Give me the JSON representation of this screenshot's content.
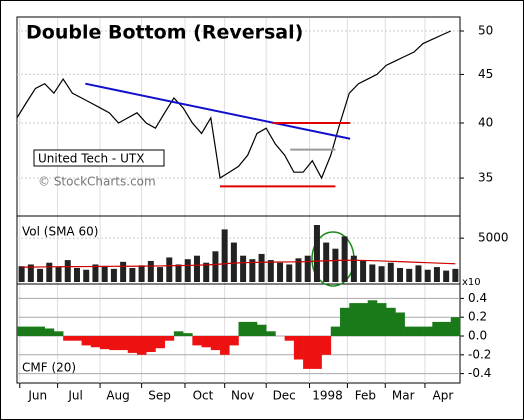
{
  "chart_data": [
    {
      "type": "line",
      "title": "Double Bottom (Reversal)",
      "label": "United Tech - UTX",
      "source": "© StockCharts.com",
      "log": true,
      "color": "#000000",
      "x": [
        0,
        1,
        2,
        3,
        4,
        5,
        6,
        7,
        8,
        9,
        10,
        11,
        12,
        13,
        14,
        15,
        16,
        17,
        18,
        19,
        20,
        21,
        22,
        23,
        24,
        25,
        26,
        27,
        28,
        29,
        30,
        31,
        32,
        33,
        34,
        35,
        36,
        37,
        38,
        39,
        40,
        41,
        42,
        43,
        44,
        45,
        46,
        47
      ],
      "values": [
        40.5,
        42,
        43.5,
        44,
        43,
        44.5,
        43,
        42.5,
        42,
        41.5,
        41,
        40,
        40.5,
        41,
        40,
        39.5,
        41,
        42.5,
        41.5,
        40,
        39,
        40.5,
        35,
        35.5,
        36,
        37,
        39,
        39.5,
        38,
        37,
        35.5,
        35.5,
        36.5,
        35,
        37,
        40,
        43,
        44,
        44.5,
        45,
        46,
        46.5,
        47,
        47.5,
        48.5,
        49,
        49.5,
        50
      ],
      "xlim": [
        0,
        48
      ],
      "ylim": [
        32,
        51.6
      ],
      "yticks": [
        50,
        45,
        40,
        35
      ],
      "lines": [
        {
          "x": [
            7.4,
            36.1
          ],
          "y": [
            44,
            38.5
          ],
          "color": "#1010cc"
        },
        {
          "x": [
            27.7,
            36.1
          ],
          "y": [
            40,
            40
          ],
          "color": "#e00000"
        },
        {
          "x": [
            22,
            34.5
          ],
          "y": [
            34.3,
            34.3
          ],
          "color": "#e00000"
        },
        {
          "x": [
            29.6,
            34.5
          ],
          "y": [
            37.5,
            37.5
          ],
          "color": "#999999"
        }
      ]
    },
    {
      "type": "bar",
      "title": "Vol (SMA 60)",
      "unit_label": "x10",
      "color": "#222222",
      "x": [
        0,
        1,
        2,
        3,
        4,
        5,
        6,
        7,
        8,
        9,
        10,
        11,
        12,
        13,
        14,
        15,
        16,
        17,
        18,
        19,
        20,
        21,
        22,
        23,
        24,
        25,
        26,
        27,
        28,
        29,
        30,
        31,
        32,
        33,
        34,
        35,
        36,
        37,
        38,
        39,
        40,
        41,
        42,
        43,
        44,
        45,
        46,
        47
      ],
      "values": [
        1800,
        2000,
        1500,
        2200,
        1700,
        2500,
        1600,
        1400,
        2000,
        1800,
        1500,
        2300,
        1600,
        1900,
        2400,
        1700,
        2800,
        2000,
        2600,
        3000,
        2200,
        3500,
        6000,
        4500,
        3000,
        2600,
        3200,
        2500,
        2200,
        2000,
        2700,
        3000,
        6500,
        4500,
        3800,
        5200,
        3000,
        2500,
        2000,
        1800,
        2200,
        1600,
        1500,
        1900,
        1400,
        1700,
        1300,
        1500
      ],
      "sma": {
        "color": "#cc0000",
        "values": [
          1700,
          1700,
          1720,
          1730,
          1740,
          1750,
          1750,
          1760,
          1770,
          1780,
          1790,
          1800,
          1800,
          1810,
          1820,
          1830,
          1850,
          1870,
          1890,
          1920,
          1950,
          2000,
          2080,
          2150,
          2200,
          2230,
          2250,
          2270,
          2280,
          2290,
          2300,
          2320,
          2380,
          2420,
          2450,
          2480,
          2480,
          2460,
          2430,
          2400,
          2360,
          2320,
          2280,
          2240,
          2200,
          2160,
          2120,
          2080
        ]
      },
      "xlim": [
        0,
        48
      ],
      "ylim": [
        0,
        7300
      ],
      "yticks": [
        5000
      ]
    },
    {
      "type": "cmf",
      "title": "CMF (20)",
      "pos_color": "#1a7a1a",
      "neg_color": "#ee1111",
      "x": [
        0,
        1,
        2,
        3,
        4,
        5,
        6,
        7,
        8,
        9,
        10,
        11,
        12,
        13,
        14,
        15,
        16,
        17,
        18,
        19,
        20,
        21,
        22,
        23,
        24,
        25,
        26,
        27,
        28,
        29,
        30,
        31,
        32,
        33,
        34,
        35,
        36,
        37,
        38,
        39,
        40,
        41,
        42,
        43,
        44,
        45,
        46,
        47
      ],
      "values": [
        0.1,
        0.1,
        0.1,
        0.08,
        0.05,
        -0.05,
        -0.05,
        -0.1,
        -0.12,
        -0.14,
        -0.15,
        -0.15,
        -0.18,
        -0.2,
        -0.17,
        -0.13,
        -0.05,
        0.05,
        0.03,
        -0.1,
        -0.12,
        -0.15,
        -0.2,
        -0.1,
        0.15,
        0.15,
        0.12,
        0.05,
        0,
        -0.05,
        -0.25,
        -0.35,
        -0.35,
        -0.2,
        0.1,
        0.3,
        0.35,
        0.35,
        0.38,
        0.35,
        0.3,
        0.25,
        0.1,
        0.1,
        0.1,
        0.15,
        0.15,
        0.2
      ],
      "xlim": [
        0,
        48
      ],
      "ylim": [
        -0.5,
        0.5
      ],
      "yticks": [
        0.4,
        0.2,
        {
          "value": 0,
          "label": "0.0"
        },
        -0.2,
        -0.4
      ],
      "xticks": [
        {
          "value": 0.3,
          "label": "Jun"
        },
        {
          "value": 4.4,
          "label": "Jul"
        },
        {
          "value": 9,
          "label": "Aug"
        },
        {
          "value": 13.5,
          "label": "Sep"
        },
        {
          "value": 18.2,
          "label": "Oct"
        },
        {
          "value": 22.5,
          "label": "Nov"
        },
        {
          "value": 27,
          "label": "Dec"
        },
        {
          "value": 31.7,
          "label": "1998"
        },
        {
          "value": 35.8,
          "label": "Feb"
        },
        {
          "value": 39.9,
          "label": "Mar"
        },
        {
          "value": 44.2,
          "label": "Apr"
        }
      ]
    }
  ]
}
